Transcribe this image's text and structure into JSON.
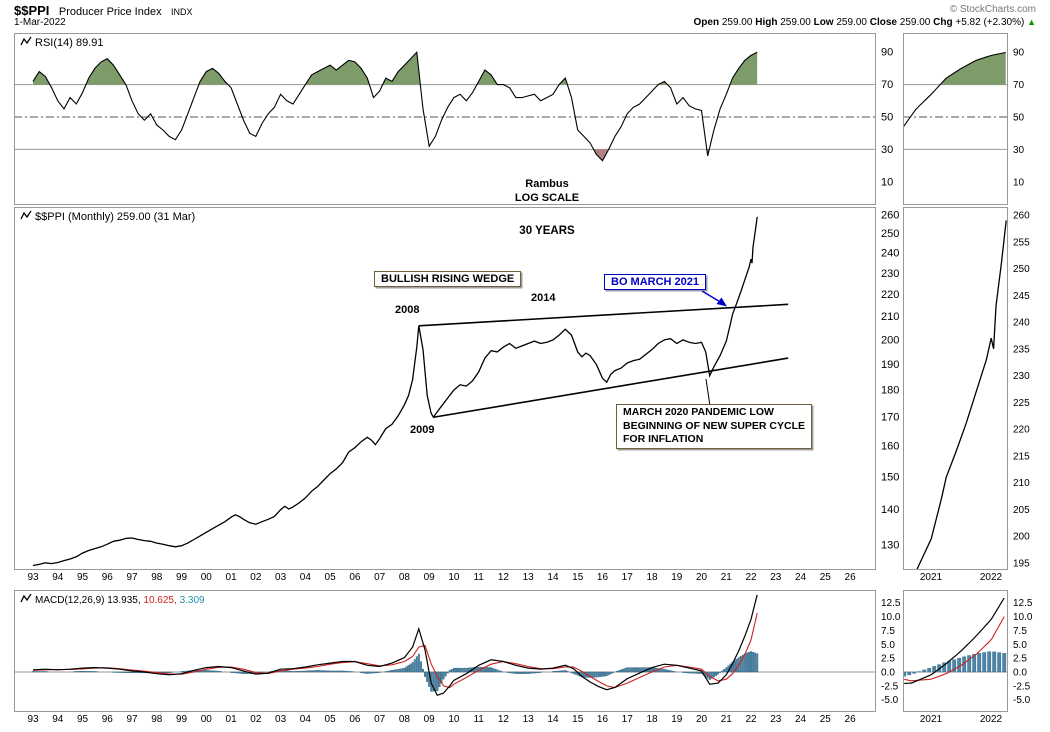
{
  "header": {
    "symbol": "$$PPI",
    "name": "Producer Price Index",
    "exchange": "INDX",
    "copyright": "© StockCharts.com",
    "date": "1-Mar-2022",
    "quote": {
      "items": [
        {
          "label": "Open",
          "value": "259.00"
        },
        {
          "label": "High",
          "value": "259.00"
        },
        {
          "label": "Low",
          "value": "259.00"
        },
        {
          "label": "Close",
          "value": "259.00"
        },
        {
          "label": "Chg",
          "value": "+5.82 (+2.30%)"
        }
      ],
      "direction": "▲"
    }
  },
  "annotations": {
    "watermark_line1": "Rambus",
    "watermark_line2": "LOG SCALE",
    "thirty_years": "30 YEARS",
    "wedge_label": "BULLISH RISING WEDGE",
    "bo_label": "BO MARCH 2021",
    "pandemic_line1": "MARCH 2020 PANDEMIC LOW",
    "pandemic_line2": "BEGINNING OF NEW SUPER CYCLE",
    "pandemic_line3": "FOR INFLATION",
    "year_2008": "2008",
    "year_2014": "2014",
    "year_2009": "2009"
  },
  "xaxis": {
    "labels": [
      "93",
      "94",
      "95",
      "96",
      "97",
      "98",
      "99",
      "00",
      "01",
      "02",
      "03",
      "04",
      "05",
      "06",
      "07",
      "08",
      "09",
      "10",
      "11",
      "12",
      "13",
      "14",
      "15",
      "16",
      "17",
      "18",
      "19",
      "20",
      "21",
      "22",
      "23",
      "24",
      "25",
      "26"
    ],
    "inset_labels": [
      "2021",
      "2022"
    ]
  },
  "insets": {
    "price_yticks": [
      260,
      255,
      250,
      245,
      240,
      235,
      230,
      225,
      220,
      215,
      210,
      205,
      200,
      195
    ]
  },
  "colors": {
    "grid": "#999999",
    "border": "#999999",
    "rsi_fill_high": "#7d9c6a",
    "rsi_fill_low": "#b08383",
    "signal": "#cc2222",
    "hist_fill": "#4d87a8",
    "hist_stroke": "#2a5d7c",
    "hist_text": "#2a8fa8",
    "annotation_blue": "#0000cc"
  },
  "chart_data": [
    {
      "type": "line",
      "panel": "rsi",
      "title": "RSI(14)",
      "label": "RSI(14) 89.91",
      "last_value": 89.91,
      "ylim": [
        0,
        100
      ],
      "yticks": [
        90,
        70,
        50,
        30,
        10
      ],
      "overbought_level": 70,
      "oversold_level": 30,
      "x_start": 1993.0,
      "x_step": 0.25,
      "values": [
        72,
        78,
        75,
        68,
        60,
        55,
        62,
        58,
        65,
        74,
        80,
        84,
        86,
        82,
        76,
        70,
        60,
        52,
        48,
        52,
        45,
        42,
        38,
        36,
        42,
        52,
        62,
        72,
        78,
        80,
        77,
        72,
        68,
        58,
        48,
        40,
        38,
        46,
        52,
        56,
        64,
        60,
        58,
        64,
        70,
        76,
        78,
        80,
        82,
        79,
        82,
        85,
        84,
        80,
        74,
        62,
        66,
        74,
        72,
        78,
        82,
        86,
        90,
        55,
        32,
        38,
        48,
        56,
        62,
        64,
        60,
        65,
        72,
        79,
        76,
        70,
        70,
        68,
        62,
        62,
        63,
        64,
        60,
        62,
        64,
        70,
        74,
        62,
        42,
        38,
        34,
        27,
        23,
        30,
        38,
        44,
        52,
        56,
        58,
        62,
        66,
        70,
        72,
        68,
        58,
        62,
        57,
        55,
        54,
        26,
        42,
        55,
        64,
        74,
        80,
        85,
        88,
        89.91
      ]
    },
    {
      "type": "line",
      "panel": "price",
      "title": "$$PPI Monthly",
      "label": "$$PPI (Monthly) 259.00 (31 Mar)",
      "scale": "log",
      "xlim": [
        1993,
        2027
      ],
      "ylim": [
        124,
        262
      ],
      "yticks": [
        260,
        250,
        240,
        230,
        220,
        210,
        200,
        190,
        180,
        170,
        160,
        150,
        140,
        130
      ],
      "x": [
        1993,
        1993.25,
        1993.5,
        1993.75,
        1994,
        1994.25,
        1994.5,
        1994.75,
        1995,
        1995.25,
        1995.5,
        1995.75,
        1996,
        1996.25,
        1996.5,
        1996.75,
        1997,
        1997.25,
        1997.5,
        1997.75,
        1998,
        1998.25,
        1998.5,
        1998.75,
        1999,
        1999.25,
        1999.5,
        1999.75,
        2000,
        2000.25,
        2000.5,
        2000.75,
        2001,
        2001.17,
        2001.33,
        2001.5,
        2001.75,
        2002,
        2002.25,
        2002.5,
        2002.75,
        2003,
        2003.17,
        2003.33,
        2003.5,
        2003.75,
        2004,
        2004.25,
        2004.5,
        2004.75,
        2005,
        2005.25,
        2005.5,
        2005.75,
        2006,
        2006.25,
        2006.5,
        2006.67,
        2006.83,
        2007,
        2007.25,
        2007.5,
        2007.75,
        2008,
        2008.17,
        2008.33,
        2008.5,
        2008.58,
        2008.75,
        2008.92,
        2009.08,
        2009.17,
        2009.33,
        2009.5,
        2009.75,
        2010,
        2010.25,
        2010.5,
        2010.75,
        2011,
        2011.25,
        2011.5,
        2011.75,
        2012,
        2012.25,
        2012.5,
        2012.75,
        2013,
        2013.25,
        2013.5,
        2013.75,
        2014,
        2014.25,
        2014.5,
        2014.75,
        2015,
        2015.17,
        2015.33,
        2015.5,
        2015.75,
        2016,
        2016.17,
        2016.33,
        2016.5,
        2016.75,
        2017,
        2017.25,
        2017.5,
        2017.75,
        2018,
        2018.25,
        2018.5,
        2018.75,
        2019,
        2019.25,
        2019.5,
        2019.75,
        2020,
        2020.17,
        2020.33,
        2020.5,
        2020.75,
        2021,
        2021.17,
        2021.25,
        2021.42,
        2021.58,
        2021.75,
        2021.92,
        2022,
        2022.04,
        2022.08,
        2022.17,
        2022.25
      ],
      "values": [
        124.5,
        124.8,
        125.2,
        125.0,
        125.3,
        125.8,
        126.2,
        126.8,
        127.8,
        128.5,
        129.0,
        129.5,
        130.2,
        131.0,
        131.3,
        131.8,
        131.9,
        131.5,
        131.2,
        131.0,
        130.5,
        130.2,
        129.8,
        129.5,
        129.8,
        130.5,
        131.5,
        132.5,
        133.5,
        134.5,
        135.5,
        136.5,
        137.8,
        138.5,
        138.0,
        137.2,
        136.2,
        135.8,
        136.5,
        137.2,
        138.0,
        140.0,
        141.0,
        140.2,
        140.8,
        142.0,
        143.5,
        145.5,
        147.0,
        149.0,
        151.0,
        152.5,
        154.5,
        158.0,
        159.5,
        161.5,
        163.0,
        162.0,
        160.5,
        162.5,
        166.0,
        167.5,
        170.5,
        174.5,
        178.0,
        184.0,
        197.0,
        206.0,
        196.0,
        178.0,
        171.5,
        170.0,
        172.0,
        174.0,
        177.0,
        180.0,
        182.0,
        181.5,
        183.5,
        187.0,
        192.5,
        195.5,
        195.0,
        197.0,
        198.5,
        196.5,
        197.5,
        198.5,
        199.5,
        198.5,
        199.0,
        200.0,
        202.0,
        204.5,
        202.0,
        195.0,
        193.0,
        194.5,
        193.5,
        190.0,
        184.5,
        183.0,
        186.0,
        187.5,
        188.5,
        190.5,
        191.5,
        192.0,
        194.0,
        196.0,
        198.5,
        200.0,
        200.5,
        198.5,
        200.0,
        199.0,
        198.5,
        199.0,
        195.0,
        185.5,
        189.0,
        193.5,
        199.5,
        207.0,
        211.0,
        216.0,
        221.0,
        227.0,
        233.0,
        237.0,
        235.0,
        243.0,
        251.0,
        259.0
      ],
      "trendlines": {
        "upper": [
          [
            2008.58,
            206
          ],
          [
            2023.5,
            215.5
          ]
        ],
        "lower": [
          [
            2009.17,
            170
          ],
          [
            2023.5,
            192.5
          ]
        ]
      }
    },
    {
      "type": "macd",
      "panel": "macd",
      "label": "MACD(12,26,9)",
      "value_macd": "13.935,",
      "value_signal": "10.625,",
      "value_hist": "3.309",
      "ylim": [
        -5,
        13
      ],
      "yticks": [
        "12.5",
        "10.0",
        "7.5",
        "5.0",
        "2.5",
        "0.0",
        "-2.5",
        "-5.0"
      ],
      "x": [
        1993,
        1993.5,
        1994,
        1994.5,
        1995,
        1995.5,
        1996,
        1996.5,
        1997,
        1997.5,
        1998,
        1998.5,
        1999,
        1999.5,
        2000,
        2000.5,
        2001,
        2001.5,
        2002,
        2002.5,
        2003,
        2003.5,
        2004,
        2004.5,
        2005,
        2005.5,
        2006,
        2006.5,
        2007,
        2007.5,
        2008,
        2008.33,
        2008.58,
        2008.83,
        2009.08,
        2009.33,
        2009.58,
        2009.83,
        2010,
        2010.5,
        2011,
        2011.5,
        2012,
        2012.5,
        2013,
        2013.5,
        2014,
        2014.5,
        2014.83,
        2015.17,
        2015.5,
        2015.83,
        2016.17,
        2016.5,
        2017,
        2017.5,
        2018,
        2018.5,
        2019,
        2019.5,
        2020,
        2020.33,
        2020.67,
        2021,
        2021.25,
        2021.5,
        2021.75,
        2022,
        2022.25
      ],
      "macd": [
        0.4,
        0.5,
        0.4,
        0.5,
        0.7,
        0.8,
        0.7,
        0.5,
        0.2,
        0.0,
        -0.3,
        -0.5,
        -0.3,
        0.3,
        0.8,
        1.0,
        0.8,
        0.2,
        -0.4,
        -0.2,
        0.5,
        0.6,
        0.9,
        1.3,
        1.6,
        1.9,
        1.9,
        1.2,
        1.0,
        1.6,
        2.6,
        4.5,
        7.8,
        4.0,
        -2.0,
        -4.2,
        -3.8,
        -2.5,
        -1.5,
        -0.3,
        1.2,
        2.2,
        1.9,
        1.2,
        0.7,
        0.5,
        0.7,
        1.2,
        0.6,
        -0.8,
        -1.8,
        -2.6,
        -3.2,
        -2.8,
        -1.2,
        -0.2,
        0.8,
        1.4,
        1.2,
        0.7,
        0.2,
        -2.2,
        -2.0,
        -0.5,
        1.5,
        3.8,
        6.5,
        9.5,
        13.935
      ],
      "signal": [
        0.3,
        0.4,
        0.45,
        0.45,
        0.55,
        0.7,
        0.75,
        0.6,
        0.35,
        0.15,
        -0.1,
        -0.35,
        -0.4,
        0.0,
        0.5,
        0.85,
        0.9,
        0.5,
        -0.1,
        -0.25,
        0.2,
        0.5,
        0.7,
        1.0,
        1.4,
        1.7,
        1.85,
        1.5,
        1.1,
        1.3,
        1.9,
        2.8,
        4.5,
        4.8,
        1.5,
        -0.8,
        -2.5,
        -2.8,
        -2.2,
        -1.0,
        0.3,
        1.4,
        1.9,
        1.5,
        1.0,
        0.6,
        0.6,
        0.9,
        0.9,
        0.1,
        -0.8,
        -1.7,
        -2.5,
        -2.8,
        -2.0,
        -1.0,
        0.0,
        0.9,
        1.2,
        0.9,
        0.5,
        -0.8,
        -1.6,
        -1.3,
        -0.3,
        1.2,
        3.2,
        5.8,
        10.625
      ]
    }
  ]
}
